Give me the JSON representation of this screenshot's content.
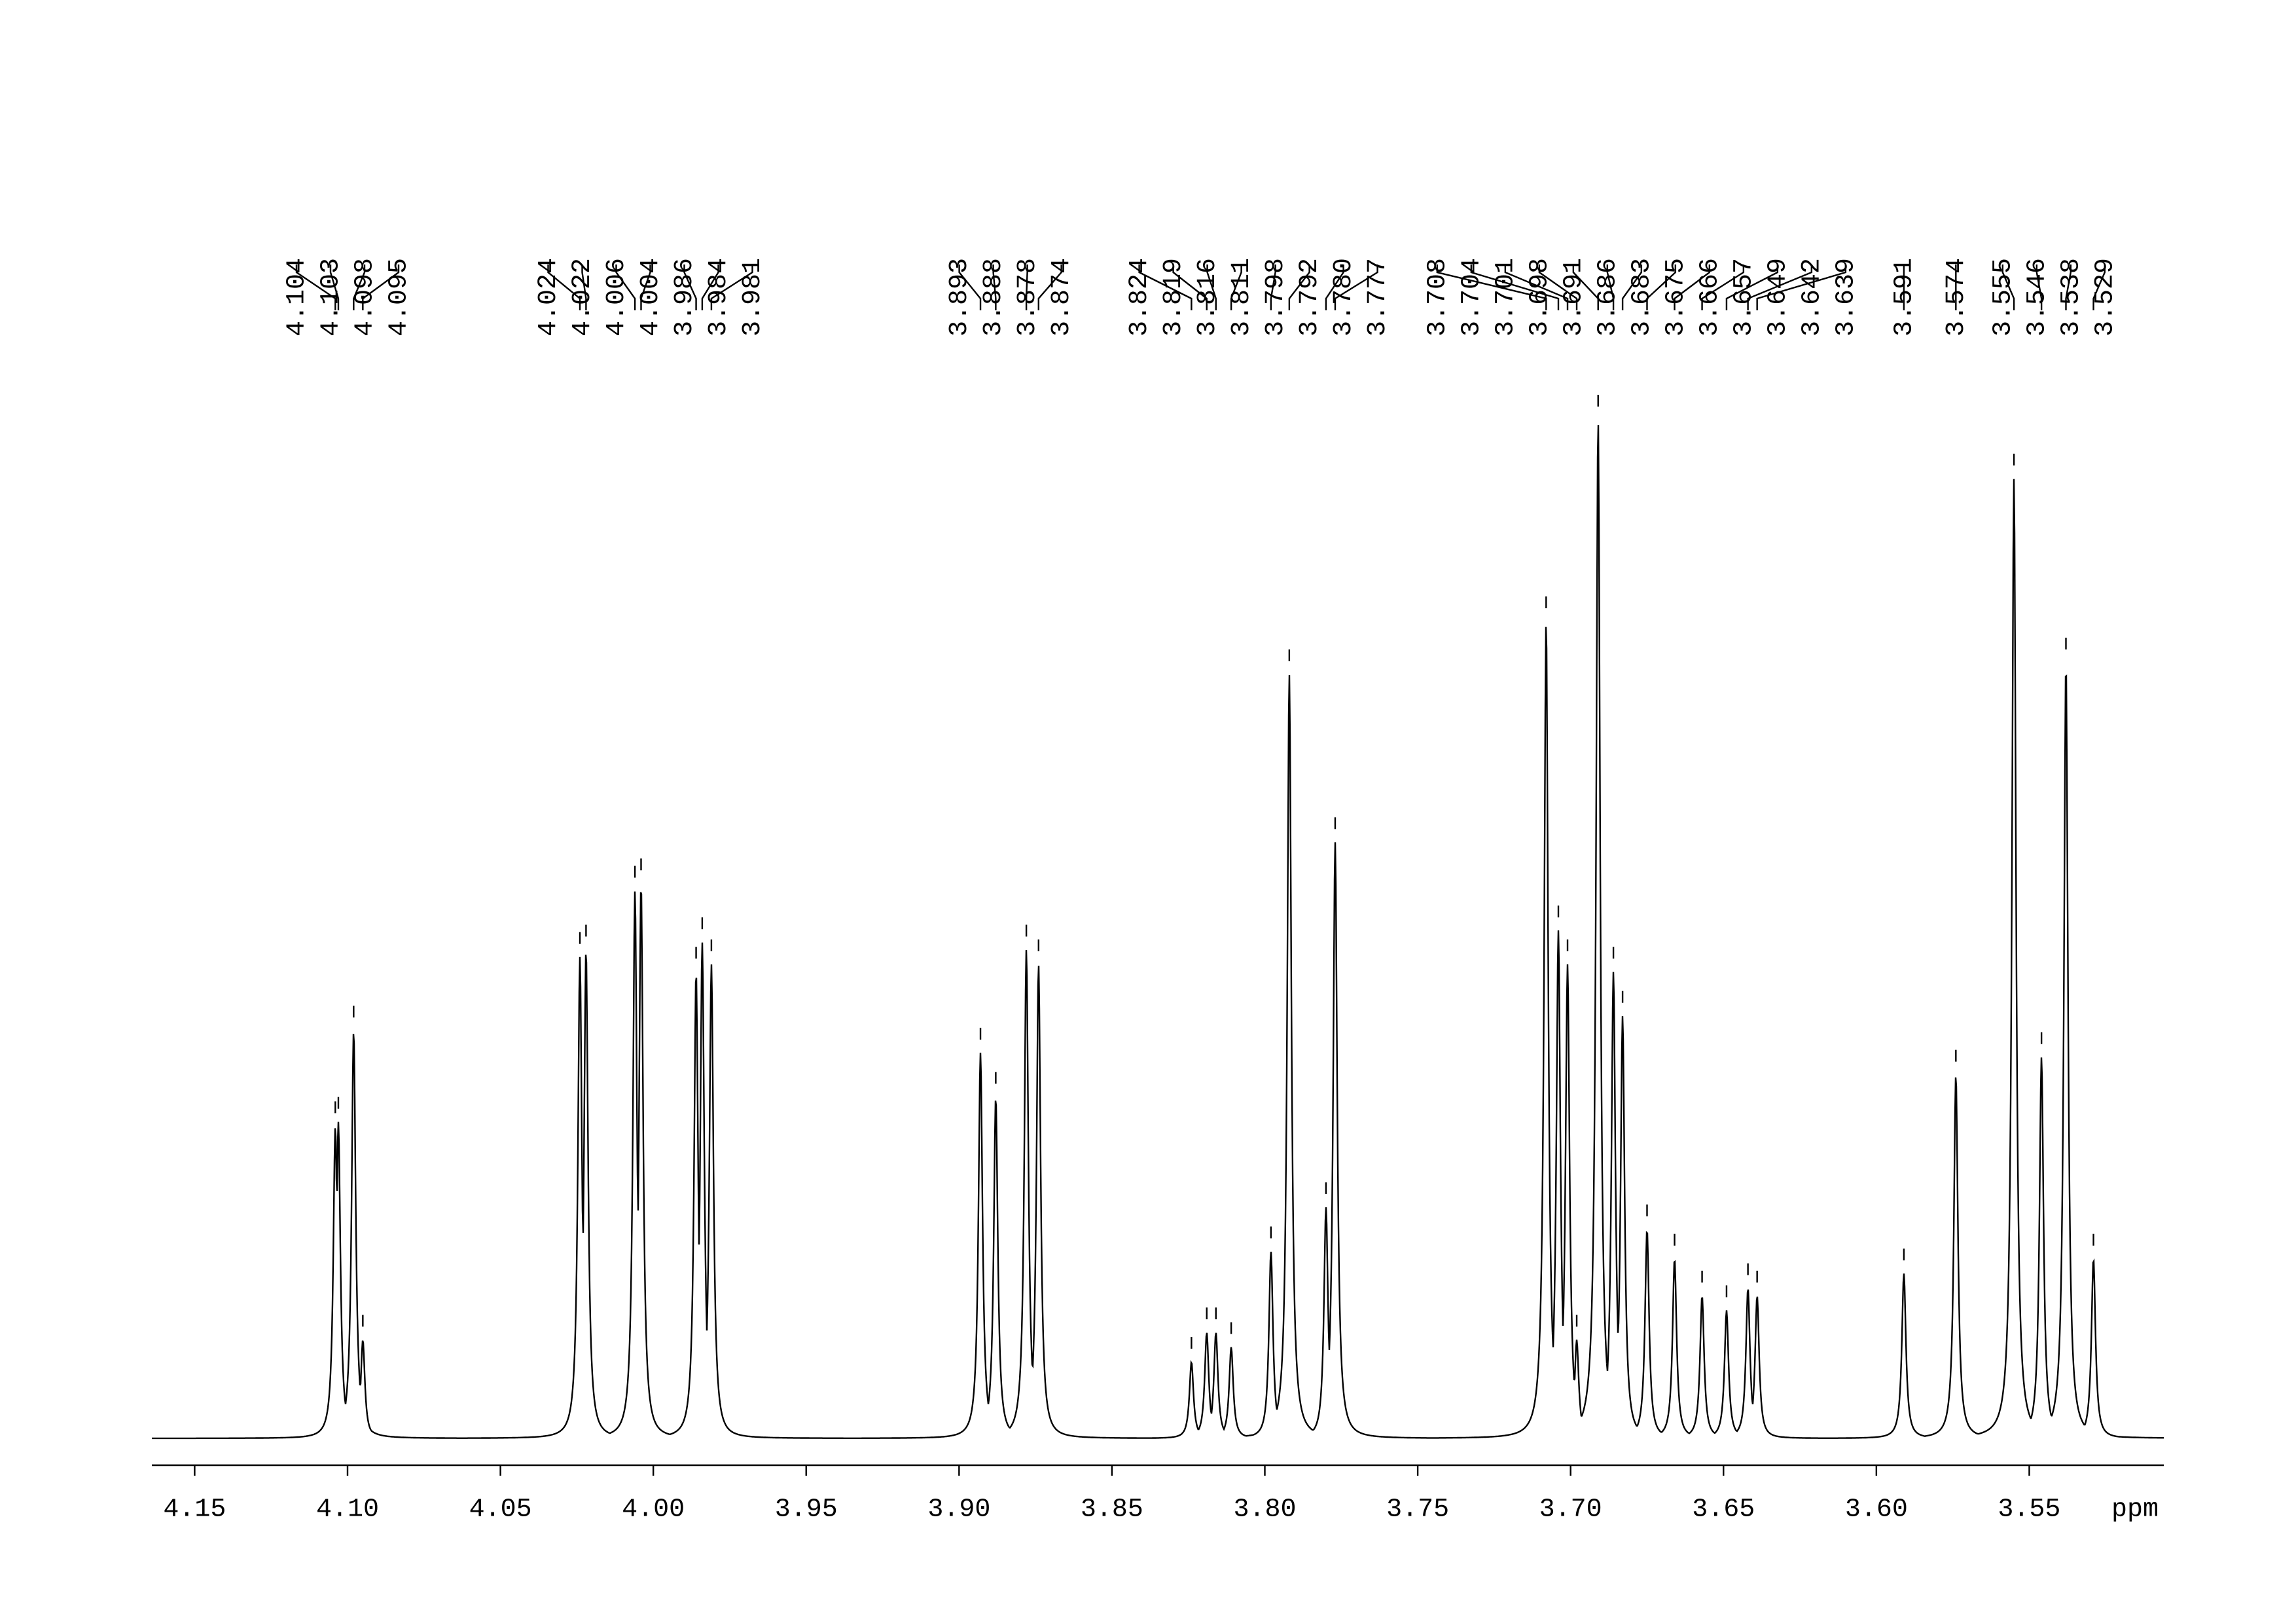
{
  "chart_data": {
    "type": "nmr",
    "xlabel": "ppm",
    "xlim": [
      4.164,
      3.506
    ],
    "xticks": [
      4.15,
      {
        "value": 4.1,
        "label": "4.10"
      },
      4.05,
      {
        "value": 4,
        "label": "4.00"
      },
      3.95,
      {
        "value": 3.9,
        "label": "3.90"
      },
      3.85,
      {
        "value": 3.8,
        "label": "3.80"
      },
      3.75,
      {
        "value": 3.7,
        "label": "3.70"
      },
      3.65,
      {
        "value": 3.6,
        "label": "3.60"
      },
      3.55
    ],
    "x": [
      4.104,
      4.103,
      4.098,
      4.095,
      4.024,
      4.022,
      4.006,
      4.004,
      3.986,
      3.984,
      3.981,
      3.893,
      3.888,
      3.878,
      3.874,
      3.824,
      3.819,
      3.816,
      3.811,
      3.798,
      3.792,
      {
        "value": 3.78,
        "label": "3.780"
      },
      3.777,
      3.708,
      3.704,
      3.701,
      3.698,
      3.691,
      3.686,
      3.683,
      3.675,
      3.666,
      3.657,
      3.649,
      3.642,
      3.639,
      3.591,
      3.574,
      3.555,
      3.546,
      3.538,
      3.529
    ],
    "values": [
      212,
      215,
      277,
      67,
      327,
      332,
      372,
      377,
      317,
      337,
      322,
      262,
      232,
      332,
      322,
      52,
      72,
      72,
      62,
      127,
      519,
      157,
      405,
      555,
      345,
      322,
      67,
      692,
      317,
      287,
      142,
      122,
      97,
      87,
      102,
      97,
      112,
      247,
      652,
      259,
      527,
      122
    ]
  }
}
